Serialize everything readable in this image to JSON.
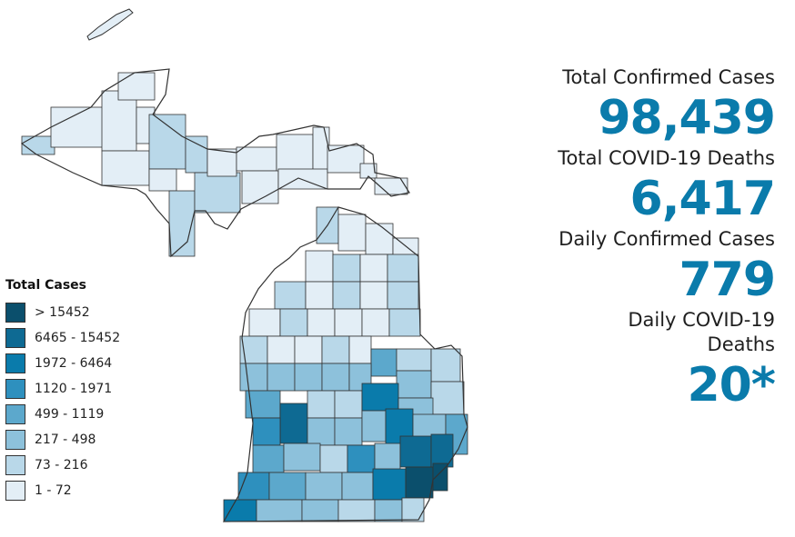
{
  "legend": {
    "title": "Total Cases",
    "items": [
      {
        "label": "> 15452",
        "color": "#0b4f6c"
      },
      {
        "label": "6465 - 15452",
        "color": "#0e6a93"
      },
      {
        "label": "1972 - 6464",
        "color": "#0a7bab"
      },
      {
        "label": "1120 - 1971",
        "color": "#2e90be"
      },
      {
        "label": "499 - 1119",
        "color": "#5ca8cc"
      },
      {
        "label": "217 - 498",
        "color": "#8dc1db"
      },
      {
        "label": "73 - 216",
        "color": "#b9d8e9"
      },
      {
        "label": "1 - 72",
        "color": "#e3eef6"
      }
    ]
  },
  "stats": [
    {
      "label": "Total Confirmed Cases",
      "value": "98,439"
    },
    {
      "label": "Total COVID-19 Deaths",
      "value": "6,417"
    },
    {
      "label": "Daily Confirmed Cases",
      "value": "779"
    },
    {
      "label": "Daily COVID-19 Deaths",
      "value": "20*"
    }
  ],
  "colors": {
    "value_text": "#0a7bab",
    "border": "#333333"
  }
}
